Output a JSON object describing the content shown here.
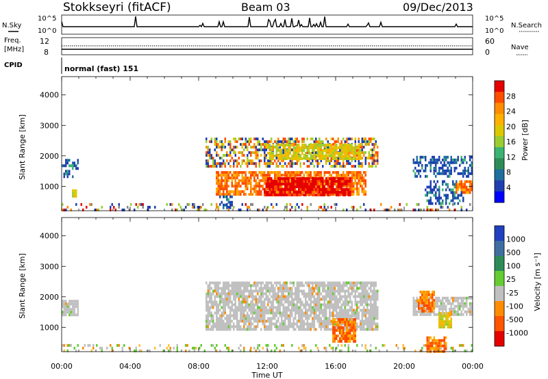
{
  "header": {
    "station": "Stokkseyri (fitACF)",
    "beam": "Beam 03",
    "date": "09/Dec/2013"
  },
  "top_panel": {
    "nsky_label": "N.Sky",
    "nsearch_label": "N.Search",
    "nsky_ticks": [
      "10^5",
      "10^0"
    ],
    "nsearch_ticks": [
      "10^5",
      "10^0"
    ],
    "freq_label_1": "Freq.",
    "freq_label_2": "[MHz]",
    "freq_ticks": [
      "12",
      "8"
    ],
    "nave_label": "Nave",
    "nave_ticks": [
      "60",
      "0"
    ],
    "cpid_label": "CPID",
    "cpid_value": "normal (fast) 151"
  },
  "colorbars": {
    "power": {
      "label": "Power [dB]",
      "ticks": [
        "28",
        "24",
        "20",
        "16",
        "12",
        "8",
        "4"
      ],
      "colors": [
        "#e60000",
        "#ff4d00",
        "#ff8c00",
        "#ffb000",
        "#dcc800",
        "#9acd32",
        "#3cb371",
        "#2e8b57",
        "#1e6e9e",
        "#1f3fb0",
        "#0000ff"
      ]
    },
    "velocity": {
      "label": "Velocity [m s⁻¹]",
      "ticks": [
        "1000",
        "500",
        "100",
        "25",
        "-25",
        "-100",
        "-500",
        "-1000"
      ],
      "colors": [
        "#2040c0",
        "#3e6fa0",
        "#2e8b57",
        "#66cc33",
        "#c0c0c0",
        "#ff8c00",
        "#ff5500",
        "#e60000"
      ]
    }
  },
  "chart_data": [
    {
      "type": "heatmap",
      "name": "power",
      "ylabel": "Slant Range [km]",
      "ylim": [
        200,
        4600
      ],
      "y_ticks": [
        1000,
        2000,
        3000,
        4000
      ],
      "x_ticks": [
        "00:00",
        "04:00",
        "08:00",
        "12:00",
        "16:00",
        "20:00",
        "00:00"
      ],
      "regions": [
        {
          "t0": 0.0,
          "t1": 1.0,
          "r0": 1350,
          "r1": 1900,
          "level": "blue"
        },
        {
          "t0": 0.6,
          "t1": 0.9,
          "r0": 700,
          "r1": 900,
          "level": "green"
        },
        {
          "t0": 0.0,
          "t1": 24.0,
          "r0": 200,
          "r1": 450,
          "level": "noise"
        },
        {
          "t0": 8.4,
          "t1": 18.5,
          "r0": 1700,
          "r1": 2600,
          "level": "mixed"
        },
        {
          "t0": 9.0,
          "t1": 17.8,
          "r0": 700,
          "r1": 1500,
          "level": "orange"
        },
        {
          "t0": 11.8,
          "t1": 16.8,
          "r0": 700,
          "r1": 1300,
          "level": "red"
        },
        {
          "t0": 12.0,
          "t1": 17.5,
          "r0": 1900,
          "r1": 2400,
          "level": "green"
        },
        {
          "t0": 9.2,
          "t1": 10.0,
          "r0": 300,
          "r1": 700,
          "level": "blue"
        },
        {
          "t0": 20.5,
          "t1": 24.0,
          "r0": 1300,
          "r1": 2000,
          "level": "blue"
        },
        {
          "t0": 21.2,
          "t1": 23.5,
          "r0": 400,
          "r1": 1200,
          "level": "blue"
        },
        {
          "t0": 23.0,
          "t1": 24.0,
          "r0": 800,
          "r1": 1200,
          "level": "orange"
        }
      ]
    },
    {
      "type": "heatmap",
      "name": "velocity",
      "ylabel": "Slant Range [km]",
      "ylim": [
        200,
        4600
      ],
      "y_ticks": [
        1000,
        2000,
        3000,
        4000
      ],
      "x_ticks": [
        "00:00",
        "04:00",
        "08:00",
        "12:00",
        "16:00",
        "20:00",
        "00:00"
      ],
      "xlabel": "Time UT",
      "regions": [
        {
          "t0": 0.0,
          "t1": 1.0,
          "r0": 1400,
          "r1": 1900,
          "level": "grey"
        },
        {
          "t0": 0.0,
          "t1": 24.0,
          "r0": 200,
          "r1": 450,
          "level": "noise_v"
        },
        {
          "t0": 8.4,
          "t1": 18.5,
          "r0": 900,
          "r1": 2500,
          "level": "grey"
        },
        {
          "t0": 15.8,
          "t1": 17.2,
          "r0": 500,
          "r1": 1300,
          "level": "orange"
        },
        {
          "t0": 20.5,
          "t1": 24.0,
          "r0": 1400,
          "r1": 2000,
          "level": "grey"
        },
        {
          "t0": 20.8,
          "t1": 21.8,
          "r0": 1500,
          "r1": 2200,
          "level": "orange"
        },
        {
          "t0": 21.3,
          "t1": 22.5,
          "r0": 200,
          "r1": 700,
          "level": "orange"
        },
        {
          "t0": 22.0,
          "t1": 22.8,
          "r0": 1000,
          "r1": 1500,
          "level": "green"
        }
      ]
    }
  ]
}
